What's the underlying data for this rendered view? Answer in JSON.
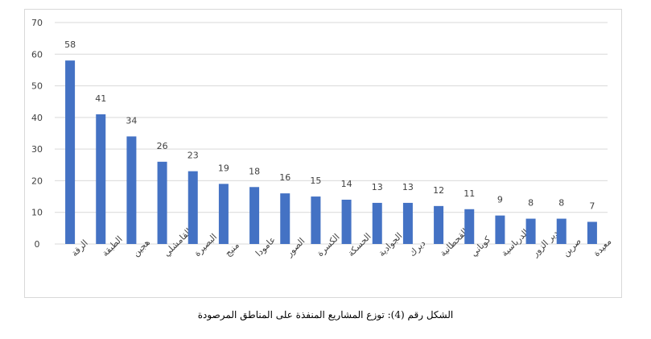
{
  "caption": "الشكل رقم (4): توزع المشاريع المنفذة على المناطق المرصودة",
  "chart_data": {
    "type": "bar",
    "categories": [
      "الرقة",
      "الطبقة",
      "هجين",
      "القامشلي",
      "البصيرة",
      "منبج",
      "عامودا",
      "الصور",
      "الكسرة",
      "الحسكة",
      "الجوادية",
      "ديرك",
      "القحطانية",
      "كوباني",
      "الدرباسية",
      "دير الزور",
      "صرين",
      "معيدة"
    ],
    "values": [
      58,
      41,
      34,
      26,
      23,
      19,
      18,
      16,
      15,
      14,
      13,
      13,
      12,
      11,
      9,
      8,
      8,
      7
    ],
    "ylim": [
      0,
      70
    ],
    "yticks": [
      0,
      10,
      20,
      30,
      40,
      50,
      60,
      70
    ],
    "grid": true,
    "data_labels": true,
    "bar_color": "#4472c4",
    "grid_color": "#d9d9d9",
    "text_color": "#404040"
  }
}
